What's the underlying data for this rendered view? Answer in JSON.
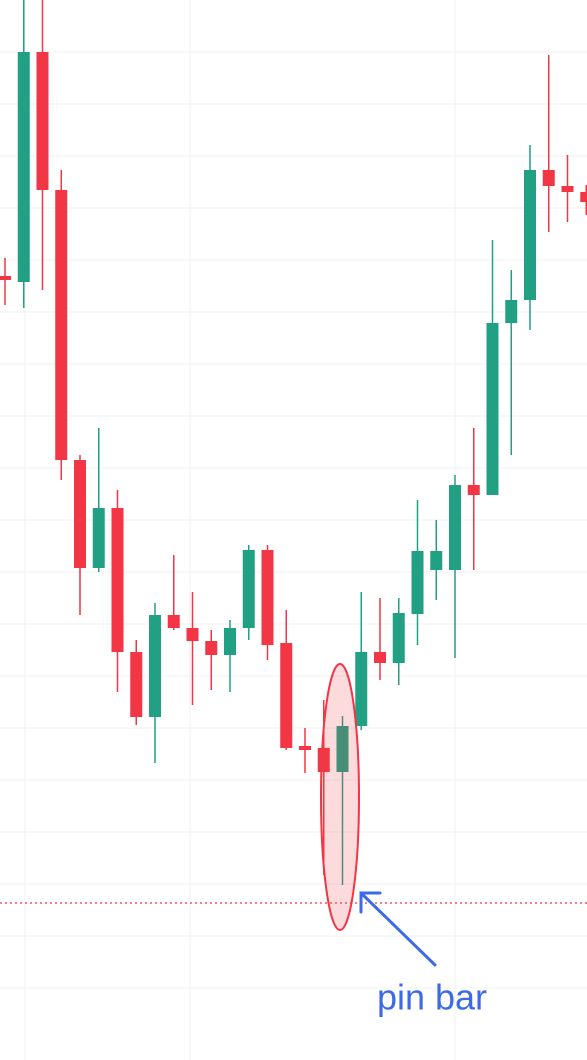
{
  "chart_data": {
    "type": "candlestick",
    "open": [
      784,
      778,
      1008,
      870,
      600,
      492,
      552,
      408,
      343,
      445,
      432,
      419,
      405,
      432,
      510,
      417,
      314,
      312,
      288,
      334,
      408,
      397,
      446,
      490,
      490,
      575,
      565,
      737,
      760,
      890,
      874,
      868
    ],
    "high": [
      802,
      1060,
      1060,
      890,
      605,
      632,
      570,
      420,
      457,
      505,
      468,
      430,
      440,
      515,
      515,
      450,
      332,
      360,
      344,
      468,
      462,
      462,
      560,
      540,
      585,
      632,
      820,
      790,
      915,
      1005,
      905,
      875
    ],
    "low": [
      755,
      752,
      770,
      580,
      445,
      488,
      368,
      335,
      297,
      430,
      355,
      370,
      368,
      420,
      400,
      310,
      287,
      185,
      175,
      330,
      380,
      375,
      415,
      460,
      402,
      490,
      565,
      605,
      730,
      828,
      838,
      845
    ],
    "close": [
      780,
      1008,
      870,
      600,
      492,
      552,
      408,
      343,
      445,
      432,
      419,
      405,
      432,
      510,
      415,
      312,
      310,
      288,
      334,
      408,
      397,
      447,
      509,
      509,
      575,
      565,
      737,
      760,
      890,
      874,
      868,
      858
    ],
    "up_color": "#22a084",
    "down_color": "#f23645",
    "ylim": [
      0,
      1060
    ],
    "reference_line": 157,
    "annotation": "pin bar"
  }
}
